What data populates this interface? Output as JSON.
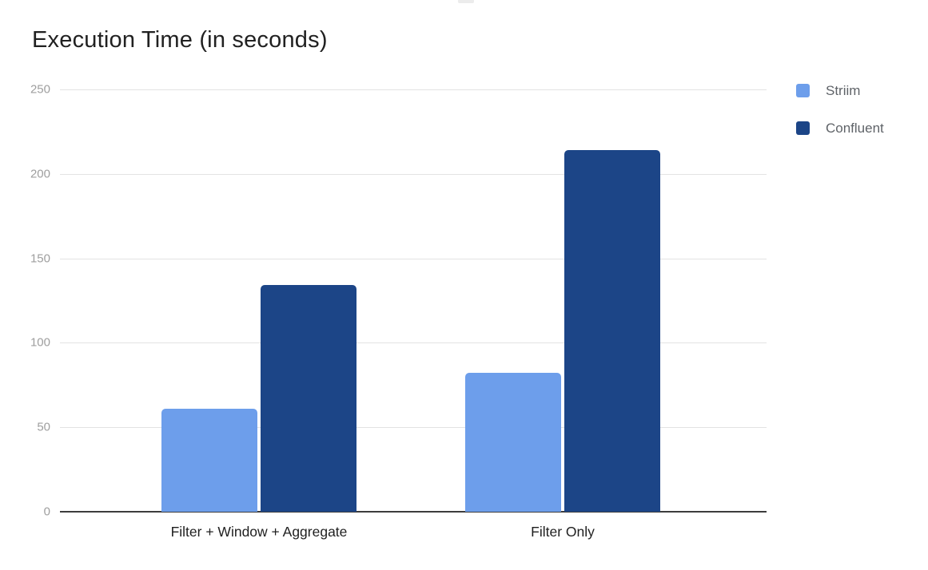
{
  "chart_data": {
    "type": "bar",
    "title": "Execution Time (in seconds)",
    "categories": [
      "Filter + Window + Aggregate",
      "Filter Only"
    ],
    "series": [
      {
        "name": "Striim",
        "color": "#6d9eeb",
        "values": [
          61,
          82
        ]
      },
      {
        "name": "Confluent",
        "color": "#1c4587",
        "values": [
          134,
          214
        ]
      }
    ],
    "xlabel": "",
    "ylabel": "",
    "ylim": [
      0,
      250
    ],
    "yticks": [
      0,
      50,
      100,
      150,
      200,
      250
    ],
    "grid": true,
    "legend_position": "right",
    "colors": {
      "background": "#ffffff",
      "gridline": "#e3e3e3",
      "axis_line": "#3c3c3c",
      "tick_label": "#9e9e9e",
      "category_label": "#1f1f1f",
      "legend_label": "#5f6368",
      "title": "#212121"
    }
  }
}
